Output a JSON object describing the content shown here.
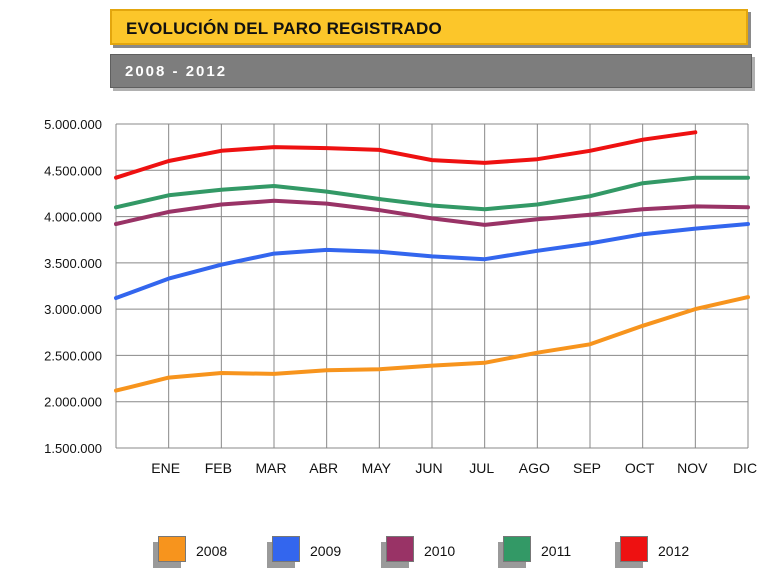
{
  "header": {
    "title": "EVOLUCIÓN DEL PARO REGISTRADO",
    "period": "2008 - 2012"
  },
  "colors": {
    "title_bg": "#fcc62a",
    "subtitle_bg": "#7d7d7d",
    "grid": "#888888"
  },
  "chart_data": {
    "type": "line",
    "x_tick_labels": [
      "ENE",
      "FEB",
      "MAR",
      "ABR",
      "MAY",
      "JUN",
      "JUL",
      "AGO",
      "SEP",
      "OCT",
      "NOV",
      "DIC"
    ],
    "y_tick_labels": [
      "5.000.000",
      "4.500.000",
      "4.000.000",
      "3.500.000",
      "3.000.000",
      "2.500.000",
      "2.000.000",
      "1.500.000"
    ],
    "y_ticks": [
      5000000,
      4500000,
      4000000,
      3500000,
      3000000,
      2500000,
      2000000,
      1500000
    ],
    "ylim": [
      1500000,
      5000000
    ],
    "grid": true,
    "legend_position": "bottom",
    "series": [
      {
        "name": "2008",
        "color": "#f7941d",
        "values": [
          2120000,
          2260000,
          2310000,
          2300000,
          2340000,
          2350000,
          2390000,
          2420000,
          2530000,
          2620000,
          2820000,
          3000000,
          3130000
        ]
      },
      {
        "name": "2009",
        "color": "#3366ee",
        "values": [
          3120000,
          3330000,
          3480000,
          3600000,
          3640000,
          3620000,
          3570000,
          3540000,
          3630000,
          3710000,
          3810000,
          3870000,
          3920000
        ]
      },
      {
        "name": "2010",
        "color": "#993366",
        "values": [
          3920000,
          4050000,
          4130000,
          4170000,
          4140000,
          4070000,
          3980000,
          3910000,
          3970000,
          4020000,
          4080000,
          4110000,
          4100000
        ]
      },
      {
        "name": "2011",
        "color": "#339966",
        "values": [
          4100000,
          4230000,
          4290000,
          4330000,
          4270000,
          4190000,
          4120000,
          4080000,
          4130000,
          4220000,
          4360000,
          4420000,
          4420000
        ]
      },
      {
        "name": "2012",
        "color": "#ee1111",
        "values": [
          4420000,
          4600000,
          4710000,
          4750000,
          4740000,
          4720000,
          4610000,
          4580000,
          4620000,
          4710000,
          4830000,
          4910000
        ]
      }
    ]
  }
}
